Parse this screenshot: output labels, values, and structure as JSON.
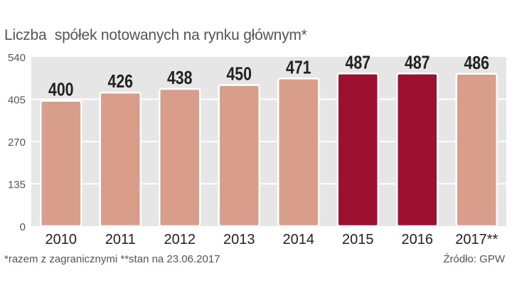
{
  "chart_data": {
    "type": "bar",
    "title": "Liczba  spółek notowanych na rynku głównym*",
    "categories": [
      "2010",
      "2011",
      "2012",
      "2013",
      "2014",
      "2015",
      "2016",
      "2017**"
    ],
    "values": [
      400,
      426,
      438,
      450,
      471,
      487,
      487,
      486
    ],
    "value_labels": [
      "400",
      "426",
      "438",
      "450",
      "471",
      "487",
      "487",
      "486"
    ],
    "highlighted": [
      false,
      false,
      false,
      false,
      false,
      true,
      true,
      false
    ],
    "ylim": [
      0,
      540
    ],
    "yticks": [
      0,
      135,
      270,
      405,
      540
    ],
    "ytick_labels": [
      "0",
      "135",
      "270",
      "405",
      "540"
    ],
    "grid": "horizontal",
    "colors": {
      "bar": "#d99e8a",
      "bar_highlight": "#9e1030",
      "plot_bg": "#e6e6e6",
      "grid": "#ffffff"
    }
  },
  "footnote": "*razem z zagranicznymi **stan na 23.06.2017",
  "source": "Źródło: GPW"
}
